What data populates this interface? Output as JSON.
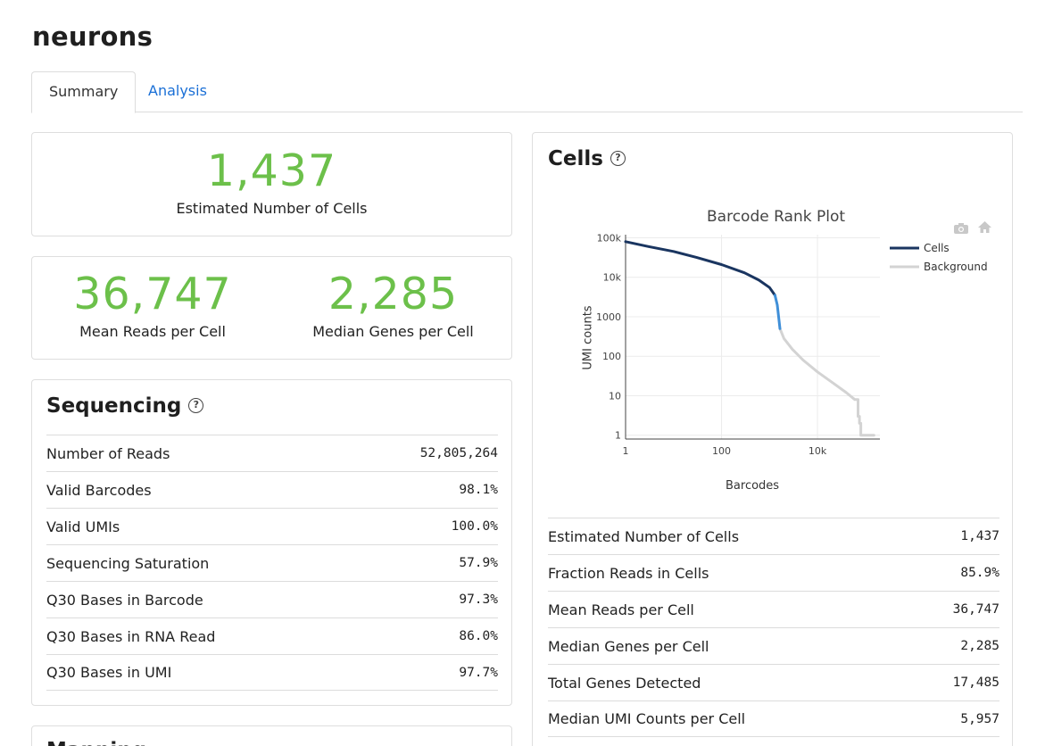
{
  "page": {
    "title": "neurons"
  },
  "tabs": [
    {
      "label": "Summary",
      "active": true
    },
    {
      "label": "Analysis",
      "active": false
    }
  ],
  "highlights": {
    "cells": {
      "value": "1,437",
      "label": "Estimated Number of Cells"
    },
    "mean_reads": {
      "value": "36,747",
      "label": "Mean Reads per Cell"
    },
    "median_genes": {
      "value": "2,285",
      "label": "Median Genes per Cell"
    }
  },
  "sequencing": {
    "title": "Sequencing",
    "help": "?",
    "rows": [
      {
        "label": "Number of Reads",
        "value": "52,805,264"
      },
      {
        "label": "Valid Barcodes",
        "value": "98.1%"
      },
      {
        "label": "Valid UMIs",
        "value": "100.0%"
      },
      {
        "label": "Sequencing Saturation",
        "value": "57.9%"
      },
      {
        "label": "Q30 Bases in Barcode",
        "value": "97.3%"
      },
      {
        "label": "Q30 Bases in RNA Read",
        "value": "86.0%"
      },
      {
        "label": "Q30 Bases in UMI",
        "value": "97.7%"
      }
    ]
  },
  "next_card": {
    "title_partial": "Mapping"
  },
  "cells_panel": {
    "title": "Cells",
    "help": "?",
    "rows": [
      {
        "label": "Estimated Number of Cells",
        "value": "1,437"
      },
      {
        "label": "Fraction Reads in Cells",
        "value": "85.9%"
      },
      {
        "label": "Mean Reads per Cell",
        "value": "36,747"
      },
      {
        "label": "Median Genes per Cell",
        "value": "2,285"
      },
      {
        "label": "Total Genes Detected",
        "value": "17,485"
      },
      {
        "label": "Median UMI Counts per Cell",
        "value": "5,957"
      }
    ]
  },
  "toolbar": {
    "camera_icon": "camera-icon",
    "home_icon": "home-icon"
  },
  "colors": {
    "accent_green": "#6cc04a",
    "cells_line": "#1a3560",
    "cells_transition": "#3f8fd8",
    "background_line": "#d3d3d3",
    "link": "#1a6fd6"
  },
  "chart_data": {
    "type": "line",
    "title": "Barcode Rank Plot",
    "xlabel": "Barcodes",
    "ylabel": "UMI counts",
    "x_scale": "log",
    "y_scale": "log",
    "xlim": [
      1,
      200000
    ],
    "ylim": [
      0.8,
      120000
    ],
    "x_ticks": [
      {
        "value": 1,
        "label": "1"
      },
      {
        "value": 100,
        "label": "100"
      },
      {
        "value": 10000,
        "label": "10k"
      }
    ],
    "y_ticks": [
      {
        "value": 1,
        "label": "1"
      },
      {
        "value": 10,
        "label": "10"
      },
      {
        "value": 100,
        "label": "100"
      },
      {
        "value": 1000,
        "label": "1000"
      },
      {
        "value": 10000,
        "label": "10k"
      },
      {
        "value": 100000,
        "label": "100k"
      }
    ],
    "legend": [
      {
        "name": "Cells",
        "color": "#1a3560"
      },
      {
        "name": "Background",
        "color": "#d3d3d3"
      }
    ],
    "legend_position": "right",
    "series": [
      {
        "name": "Cells",
        "points": [
          [
            1,
            80000
          ],
          [
            3,
            60000
          ],
          [
            10,
            45000
          ],
          [
            30,
            32000
          ],
          [
            100,
            21000
          ],
          [
            300,
            13000
          ],
          [
            600,
            8500
          ],
          [
            1000,
            5500
          ],
          [
            1300,
            3500
          ]
        ]
      },
      {
        "name": "Cells-transition",
        "points": [
          [
            1300,
            3500
          ],
          [
            1450,
            2000
          ],
          [
            1550,
            1000
          ],
          [
            1650,
            500
          ]
        ]
      },
      {
        "name": "Background",
        "points": [
          [
            1650,
            500
          ],
          [
            2000,
            280
          ],
          [
            3000,
            150
          ],
          [
            5000,
            80
          ],
          [
            10000,
            40
          ],
          [
            20000,
            22
          ],
          [
            40000,
            12
          ],
          [
            60000,
            8
          ],
          [
            70000,
            3
          ],
          [
            75000,
            2
          ],
          [
            80000,
            1
          ],
          [
            150000,
            1
          ]
        ]
      }
    ]
  }
}
